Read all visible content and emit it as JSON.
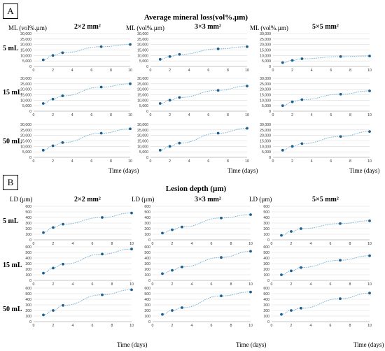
{
  "panels": [
    {
      "id": "A",
      "title": "Average mineral loss(vol%.µm)",
      "ylabel": "ML (vol%.µm)",
      "xlabel": "Time (days)",
      "columns": [
        "2×2 mm²",
        "3×3 mm²",
        "5×5 mm²"
      ],
      "rows": [
        "5 mL",
        "15 mL",
        "50 mL"
      ]
    },
    {
      "id": "B",
      "title": "Lesion depth (µm)",
      "ylabel": "LD (µm)",
      "xlabel": "Time (days)",
      "columns": [
        "2×2 mm²",
        "3×3 mm²",
        "5×5 mm²"
      ],
      "rows": [
        "5 mL",
        "15 mL",
        "50 mL"
      ]
    }
  ],
  "chart_data": [
    {
      "panel": "A",
      "type": "scatter",
      "x": [
        1,
        2,
        3,
        7,
        10
      ],
      "xticks": [
        "0",
        "2",
        "4",
        "6",
        "8",
        "10"
      ],
      "xlim": [
        0,
        10
      ],
      "ylim": [
        0,
        30000
      ],
      "yticks": [
        "0",
        "5,000",
        "10,000",
        "15,000",
        "20,000",
        "25,000",
        "30,000"
      ],
      "ylabel": "ML (vol%.µm)",
      "xlabel": "Time (days)",
      "trendline": "dotted",
      "colors": {
        "points": "#1f5f8b",
        "trend": "#6aaed6"
      },
      "series": [
        {
          "name": "5 mL, 2×2 mm²",
          "values": [
            6000,
            10000,
            12500,
            18000,
            20000
          ]
        },
        {
          "name": "5 mL, 3×3 mm²",
          "values": [
            6500,
            9000,
            11000,
            16000,
            18000
          ]
        },
        {
          "name": "5 mL, 5×5 mm²",
          "values": [
            3500,
            5500,
            7000,
            9000,
            9500
          ]
        },
        {
          "name": "15 mL, 2×2 mm²",
          "values": [
            7000,
            11000,
            14000,
            22000,
            25000
          ]
        },
        {
          "name": "15 mL, 3×3 mm²",
          "values": [
            7000,
            10000,
            12500,
            19000,
            23000
          ]
        },
        {
          "name": "15 mL, 5×5 mm²",
          "values": [
            5000,
            8500,
            10500,
            15500,
            18500
          ]
        },
        {
          "name": "50 mL, 2×2 mm²",
          "values": [
            6500,
            10500,
            13500,
            22000,
            26000
          ]
        },
        {
          "name": "50 mL, 3×3 mm²",
          "values": [
            6500,
            10000,
            13000,
            22000,
            26500
          ]
        },
        {
          "name": "50 mL, 5×5 mm²",
          "values": [
            6500,
            10000,
            12500,
            19000,
            23500
          ]
        }
      ]
    },
    {
      "panel": "B",
      "type": "scatter",
      "x": [
        1,
        2,
        3,
        7,
        10
      ],
      "xticks": [
        "0",
        "2",
        "4",
        "6",
        "8",
        "10"
      ],
      "xlim": [
        0,
        10
      ],
      "ylim": [
        0,
        600
      ],
      "yticks": [
        "0",
        "100",
        "200",
        "300",
        "400",
        "500",
        "600"
      ],
      "ylabel": "LD (µm)",
      "xlabel": "Time (days)",
      "trendline": "dotted",
      "colors": {
        "points": "#1f5f8b",
        "trend": "#6aaed6"
      },
      "series": [
        {
          "name": "5 mL, 2×2 mm²",
          "values": [
            130,
            220,
            280,
            400,
            480
          ]
        },
        {
          "name": "5 mL, 3×3 mm²",
          "values": [
            120,
            180,
            230,
            390,
            450
          ]
        },
        {
          "name": "5 mL, 5×5 mm²",
          "values": [
            80,
            150,
            200,
            290,
            340
          ]
        },
        {
          "name": "15 mL, 2×2 mm²",
          "values": [
            130,
            220,
            290,
            470,
            560
          ]
        },
        {
          "name": "15 mL, 3×3 mm²",
          "values": [
            120,
            180,
            240,
            410,
            520
          ]
        },
        {
          "name": "15 mL, 5×5 mm²",
          "values": [
            100,
            170,
            230,
            360,
            440
          ]
        },
        {
          "name": "50 mL, 2×2 mm²",
          "values": [
            120,
            200,
            290,
            480,
            570
          ]
        },
        {
          "name": "50 mL, 3×3 mm²",
          "values": [
            130,
            200,
            250,
            460,
            530
          ]
        },
        {
          "name": "50 mL, 5×5 mm²",
          "values": [
            130,
            200,
            240,
            410,
            510
          ]
        }
      ]
    }
  ]
}
